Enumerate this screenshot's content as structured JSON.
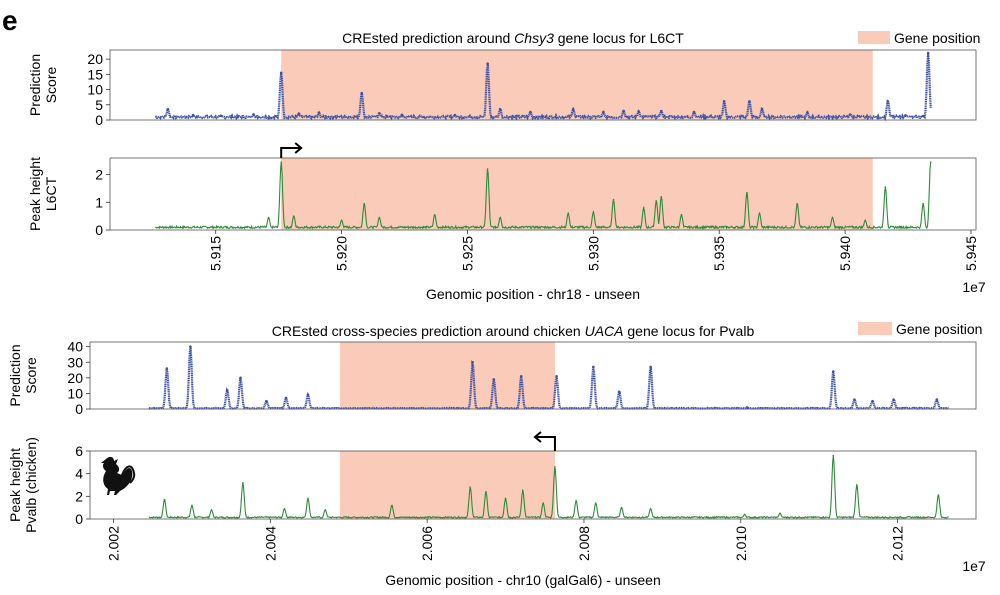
{
  "panel_letter": "e",
  "colors": {
    "gene_region": "#f9cbb8",
    "prediction_series": "#3f51a3",
    "peak_series": "#2e8b3a"
  },
  "chart_data": [
    {
      "type": "line",
      "title_prefix": "CREsted prediction around ",
      "title_gene": "Chsy3",
      "title_suffix": " gene locus for L6CT",
      "legend": {
        "label": "Gene position",
        "placement": "top-right"
      },
      "xlabel": "Genomic position - chr18 - unseen",
      "x_exponent": "1e7",
      "xlim": [
        5.9108,
        5.9452
      ],
      "xticks": [
        5.915,
        5.92,
        5.925,
        5.93,
        5.935,
        5.94,
        5.945
      ],
      "xtick_labels": [
        "5.915",
        "5.920",
        "5.925",
        "5.930",
        "5.935",
        "5.940",
        "5.945"
      ],
      "gene_region": [
        5.9176,
        5.9411
      ],
      "tss_arrow": {
        "x": 5.9176,
        "direction": "right"
      },
      "tracks": [
        {
          "ylabel": [
            "Prediction",
            "Score"
          ],
          "ylim": [
            0,
            23
          ],
          "yticks": [
            0,
            5,
            10,
            15,
            20
          ],
          "ytick_labels": [
            "0",
            "5",
            "10",
            "15",
            "20"
          ],
          "style": "dots",
          "series": [
            {
              "x_range": [
                5.9126,
                5.9434
              ],
              "baseline": 1,
              "peaks": [
                [
                  5.9131,
                  3.5
                ],
                [
                  5.9141,
                  1.6
                ],
                [
                  5.9152,
                  1.4
                ],
                [
                  5.9165,
                  1.8
                ],
                [
                  5.9176,
                  15.5
                ],
                [
                  5.9183,
                  2.1
                ],
                [
                  5.9191,
                  2.4
                ],
                [
                  5.9208,
                  8.8
                ],
                [
                  5.9215,
                  2.2
                ],
                [
                  5.9224,
                  1.7
                ],
                [
                  5.9245,
                  1.6
                ],
                [
                  5.9258,
                  18.5
                ],
                [
                  5.9263,
                  3.5
                ],
                [
                  5.9275,
                  2.6
                ],
                [
                  5.9292,
                  3.5
                ],
                [
                  5.9304,
                  2.6
                ],
                [
                  5.9312,
                  3.0
                ],
                [
                  5.9318,
                  2.8
                ],
                [
                  5.9327,
                  2.9
                ],
                [
                  5.934,
                  2.6
                ],
                [
                  5.9352,
                  6.1
                ],
                [
                  5.9362,
                  6.1
                ],
                [
                  5.9367,
                  3.6
                ],
                [
                  5.9385,
                  2.5
                ],
                [
                  5.9402,
                  1.8
                ],
                [
                  5.9417,
                  6.1
                ],
                [
                  5.9424,
                  1.5
                ],
                [
                  5.9431,
                  1.3
                ],
                [
                  5.9433,
                  22.0
                ]
              ]
            }
          ]
        },
        {
          "ylabel": [
            "Peak height",
            "L6CT"
          ],
          "ylim": [
            0,
            2.6
          ],
          "yticks": [
            0,
            1,
            2
          ],
          "ytick_labels": [
            "0",
            "1",
            "2"
          ],
          "style": "line",
          "series": [
            {
              "x_range": [
                5.9126,
                5.9434
              ],
              "baseline": 0.1,
              "peaks": [
                [
                  5.9171,
                  0.45
                ],
                [
                  5.9176,
                  2.45
                ],
                [
                  5.9181,
                  0.5
                ],
                [
                  5.92,
                  0.35
                ],
                [
                  5.9209,
                  0.95
                ],
                [
                  5.9215,
                  0.45
                ],
                [
                  5.9237,
                  0.55
                ],
                [
                  5.9258,
                  2.2
                ],
                [
                  5.9263,
                  0.45
                ],
                [
                  5.929,
                  0.6
                ],
                [
                  5.93,
                  0.65
                ],
                [
                  5.9308,
                  1.1
                ],
                [
                  5.932,
                  0.8
                ],
                [
                  5.9325,
                  1.05
                ],
                [
                  5.9327,
                  1.2
                ],
                [
                  5.9335,
                  0.55
                ],
                [
                  5.9361,
                  1.35
                ],
                [
                  5.9366,
                  0.6
                ],
                [
                  5.9381,
                  0.95
                ],
                [
                  5.9395,
                  0.45
                ],
                [
                  5.9408,
                  0.35
                ],
                [
                  5.9416,
                  1.55
                ],
                [
                  5.9431,
                  0.95
                ],
                [
                  5.9434,
                  2.45
                ]
              ]
            }
          ]
        }
      ]
    },
    {
      "type": "line",
      "title_prefix": "CREsted cross-species prediction around chicken ",
      "title_gene": "UACA",
      "title_suffix": " gene locus for Pvalb",
      "legend": {
        "label": "Gene position",
        "placement": "top-right"
      },
      "xlabel": "Genomic position - chr10 (galGal6) - unseen",
      "x_exponent": "1e7",
      "xlim": [
        2.0017,
        2.013
      ],
      "xticks": [
        2.002,
        2.004,
        2.006,
        2.008,
        2.01,
        2.012
      ],
      "xtick_labels": [
        "2.002",
        "2.004",
        "2.006",
        "2.008",
        "2.010",
        "2.012"
      ],
      "gene_region": [
        2.00489,
        2.00763
      ],
      "tss_arrow": {
        "x": 2.00763,
        "direction": "left"
      },
      "tracks": [
        {
          "ylabel": [
            "Prediction",
            "Score"
          ],
          "ylim": [
            0,
            43
          ],
          "yticks": [
            0,
            10,
            20,
            30,
            40
          ],
          "ytick_labels": [
            "0",
            "10",
            "20",
            "30",
            "40"
          ],
          "style": "dots",
          "series": [
            {
              "x_range": [
                2.00245,
                2.01265
              ],
              "baseline": 0.5,
              "peaks": [
                [
                  2.00268,
                  26
                ],
                [
                  2.00298,
                  40
                ],
                [
                  2.00345,
                  12
                ],
                [
                  2.00362,
                  20
                ],
                [
                  2.00395,
                  5
                ],
                [
                  2.0042,
                  7
                ],
                [
                  2.00448,
                  9
                ],
                [
                  2.00658,
                  30
                ],
                [
                  2.00685,
                  19
                ],
                [
                  2.0072,
                  21
                ],
                [
                  2.00765,
                  21
                ],
                [
                  2.00812,
                  27
                ],
                [
                  2.00845,
                  11
                ],
                [
                  2.00885,
                  27
                ],
                [
                  2.01008,
                  1
                ],
                [
                  2.01118,
                  24
                ],
                [
                  2.01145,
                  6
                ],
                [
                  2.01168,
                  5
                ],
                [
                  2.01195,
                  6
                ],
                [
                  2.0125,
                  6
                ]
              ]
            }
          ]
        },
        {
          "ylabel": [
            "Peak height",
            "Pvalb (chicken)"
          ],
          "ylim": [
            0,
            6
          ],
          "yticks": [
            0,
            2,
            4,
            6
          ],
          "ytick_labels": [
            "0",
            "2",
            "4",
            "6"
          ],
          "style": "line",
          "series": [
            {
              "x_range": [
                2.00245,
                2.01265
              ],
              "baseline": 0.15,
              "peaks": [
                [
                  2.00265,
                  1.7
                ],
                [
                  2.003,
                  1.2
                ],
                [
                  2.00325,
                  0.8
                ],
                [
                  2.00365,
                  3.2
                ],
                [
                  2.00418,
                  0.9
                ],
                [
                  2.00448,
                  1.8
                ],
                [
                  2.0047,
                  0.8
                ],
                [
                  2.00555,
                  1.2
                ],
                [
                  2.00655,
                  2.8
                ],
                [
                  2.00675,
                  2.4
                ],
                [
                  2.007,
                  1.8
                ],
                [
                  2.00722,
                  2.5
                ],
                [
                  2.00748,
                  1.4
                ],
                [
                  2.00763,
                  4.6
                ],
                [
                  2.0079,
                  1.6
                ],
                [
                  2.00815,
                  1.4
                ],
                [
                  2.00848,
                  1.0
                ],
                [
                  2.00885,
                  0.9
                ],
                [
                  2.01005,
                  0.4
                ],
                [
                  2.0105,
                  0.5
                ],
                [
                  2.01118,
                  5.6
                ],
                [
                  2.01148,
                  3.0
                ],
                [
                  2.01252,
                  2.1
                ]
              ]
            }
          ]
        }
      ]
    }
  ]
}
